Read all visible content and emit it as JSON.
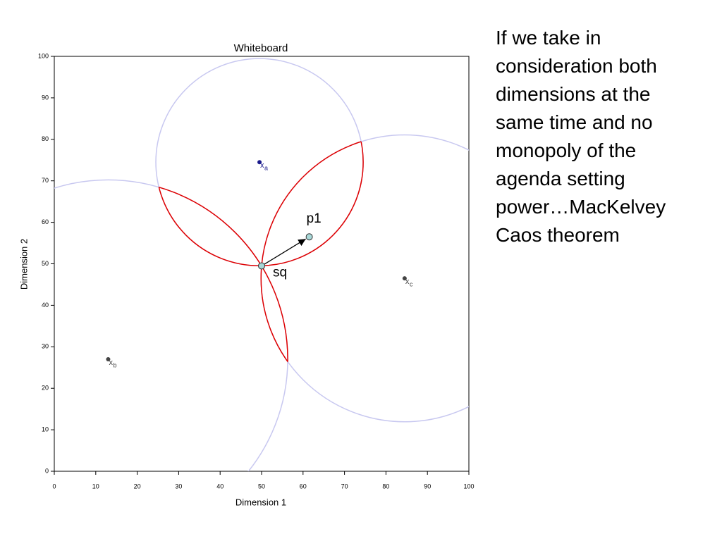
{
  "chart_data": {
    "type": "scatter",
    "title": "Whiteboard",
    "x_label": "Dimension 1",
    "y_label": "Dimension 2",
    "xlim": [
      0,
      100
    ],
    "ylim": [
      0,
      100
    ],
    "xticks": [
      0,
      10,
      20,
      30,
      40,
      50,
      60,
      70,
      80,
      90,
      100
    ],
    "yticks": [
      0,
      10,
      20,
      30,
      40,
      50,
      60,
      70,
      80,
      90,
      100
    ],
    "circle_color": "#c8c8f0",
    "winset_color": "#e00000",
    "ideal_points": [
      {
        "name": "x",
        "sub": "a",
        "x": 49.5,
        "y": 74.5,
        "color": "#1a1a8c"
      },
      {
        "name": "x",
        "sub": "b",
        "x": 13,
        "y": 27,
        "color": "#444444"
      },
      {
        "name": "x",
        "sub": "c",
        "x": 84.5,
        "y": 46.5,
        "color": "#444444"
      }
    ],
    "points": [
      {
        "label": "sq",
        "x": 50,
        "y": 49.5,
        "color": "#a8d8d8"
      },
      {
        "label": "p1",
        "x": 61.5,
        "y": 56.5,
        "color": "#a8d8d8"
      }
    ]
  },
  "note": {
    "lines": [
      "If we take in",
      "consideration both",
      "dimensions at the",
      "same time and no",
      "monopoly of the",
      "agenda setting",
      "power…MacKelvey",
      "Caos theorem"
    ]
  }
}
